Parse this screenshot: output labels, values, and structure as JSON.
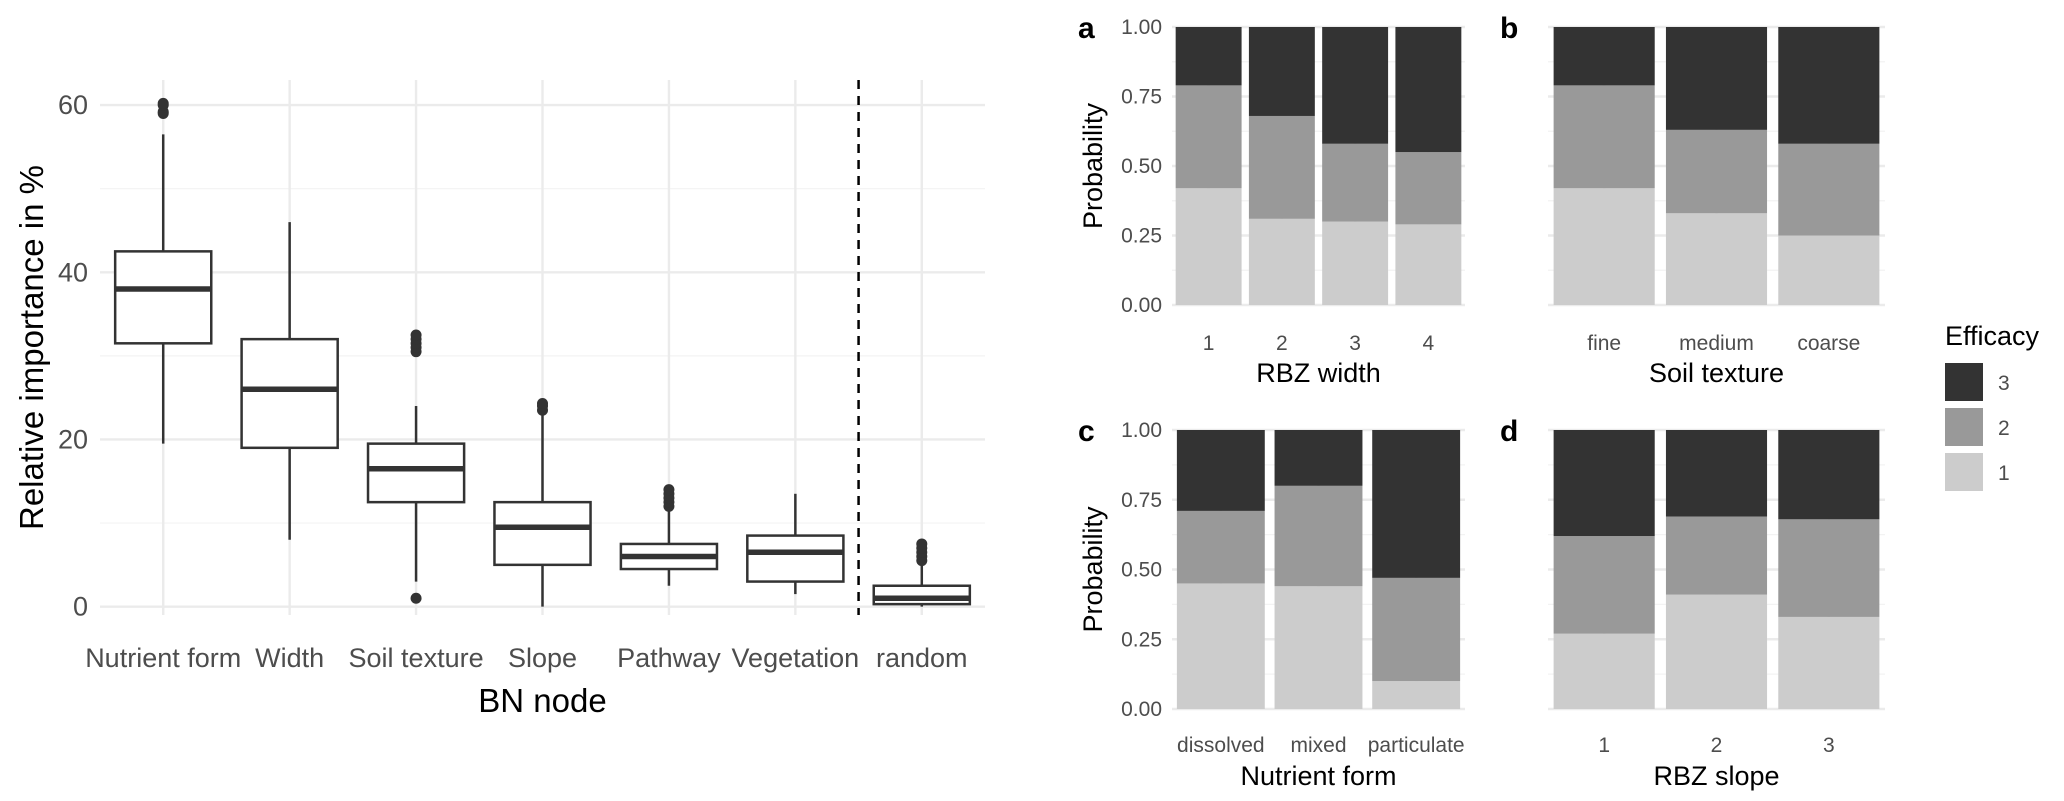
{
  "chart_data": [
    {
      "type": "boxplot",
      "title": "",
      "xlabel": "BN node",
      "ylabel": "Relative importance in %",
      "ylim": [
        -1,
        63
      ],
      "yticks": [
        0,
        20,
        40,
        60
      ],
      "grid": true,
      "separator_after_category": "Vegetation",
      "categories": [
        "Nutrient form",
        "Width",
        "Soil texture",
        "Slope",
        "Pathway",
        "Vegetation",
        "random"
      ],
      "boxes": [
        {
          "q1": 31.5,
          "median": 38.0,
          "q3": 42.5,
          "whisker_low": 19.5,
          "whisker_high": 56.5,
          "outliers": [
            59,
            59.2,
            60,
            60.2
          ]
        },
        {
          "q1": 19.0,
          "median": 26.0,
          "q3": 32.0,
          "whisker_low": 8.0,
          "whisker_high": 46.0,
          "outliers": []
        },
        {
          "q1": 12.5,
          "median": 16.5,
          "q3": 19.5,
          "whisker_low": 3.0,
          "whisker_high": 24.0,
          "outliers": [
            30.5,
            31,
            31.5,
            32,
            32.5,
            1.0
          ]
        },
        {
          "q1": 5.0,
          "median": 9.5,
          "q3": 12.5,
          "whisker_low": 0.0,
          "whisker_high": 23.0,
          "outliers": [
            23.5,
            24,
            24.3
          ]
        },
        {
          "q1": 4.5,
          "median": 6.0,
          "q3": 7.5,
          "whisker_low": 2.5,
          "whisker_high": 11.5,
          "outliers": [
            12,
            12.5,
            13,
            13.5,
            14
          ]
        },
        {
          "q1": 3.0,
          "median": 6.5,
          "q3": 8.5,
          "whisker_low": 1.5,
          "whisker_high": 13.5,
          "outliers": []
        },
        {
          "q1": 0.3,
          "median": 1.0,
          "q3": 2.5,
          "whisker_low": 0.0,
          "whisker_high": 5.0,
          "outliers": [
            5.5,
            6,
            6.5,
            7,
            7.5
          ]
        }
      ]
    },
    {
      "type": "stacked-bar",
      "panel": "a",
      "xlabel": "RBZ width",
      "ylabel": "Probability",
      "ylim": [
        0,
        1
      ],
      "yticks": [
        "0.00",
        "0.25",
        "0.50",
        "0.75",
        "1.00"
      ],
      "categories": [
        "1",
        "2",
        "3",
        "4"
      ],
      "series": [
        {
          "name": "1",
          "values": [
            0.42,
            0.31,
            0.3,
            0.29
          ]
        },
        {
          "name": "2",
          "values": [
            0.37,
            0.37,
            0.28,
            0.26
          ]
        },
        {
          "name": "3",
          "values": [
            0.21,
            0.32,
            0.42,
            0.45
          ]
        }
      ]
    },
    {
      "type": "stacked-bar",
      "panel": "b",
      "xlabel": "Soil texture",
      "ylabel": "",
      "ylim": [
        0,
        1
      ],
      "categories": [
        "fine",
        "medium",
        "coarse"
      ],
      "series": [
        {
          "name": "1",
          "values": [
            0.42,
            0.33,
            0.25
          ]
        },
        {
          "name": "2",
          "values": [
            0.37,
            0.3,
            0.33
          ]
        },
        {
          "name": "3",
          "values": [
            0.21,
            0.37,
            0.42
          ]
        }
      ]
    },
    {
      "type": "stacked-bar",
      "panel": "c",
      "xlabel": "Nutrient form",
      "ylabel": "Probability",
      "ylim": [
        0,
        1
      ],
      "yticks": [
        "0.00",
        "0.25",
        "0.50",
        "0.75",
        "1.00"
      ],
      "categories": [
        "dissolved",
        "mixed",
        "particulate"
      ],
      "series": [
        {
          "name": "1",
          "values": [
            0.45,
            0.44,
            0.1
          ]
        },
        {
          "name": "2",
          "values": [
            0.26,
            0.36,
            0.37
          ]
        },
        {
          "name": "3",
          "values": [
            0.29,
            0.2,
            0.53
          ]
        }
      ]
    },
    {
      "type": "stacked-bar",
      "panel": "d",
      "xlabel": "RBZ slope",
      "ylabel": "",
      "ylim": [
        0,
        1
      ],
      "categories": [
        "1",
        "2",
        "3"
      ],
      "series": [
        {
          "name": "1",
          "values": [
            0.27,
            0.41,
            0.33
          ]
        },
        {
          "name": "2",
          "values": [
            0.35,
            0.28,
            0.35
          ]
        },
        {
          "name": "3",
          "values": [
            0.38,
            0.31,
            0.32
          ]
        }
      ]
    }
  ],
  "legend": {
    "title": "Efficacy",
    "position": "right",
    "items": [
      {
        "label": "3",
        "color": "#333333"
      },
      {
        "label": "2",
        "color": "#999999"
      },
      {
        "label": "1",
        "color": "#cccccc"
      }
    ]
  },
  "colors": {
    "level_1": "#cccccc",
    "level_2": "#999999",
    "level_3": "#333333",
    "box_line": "#333333"
  }
}
